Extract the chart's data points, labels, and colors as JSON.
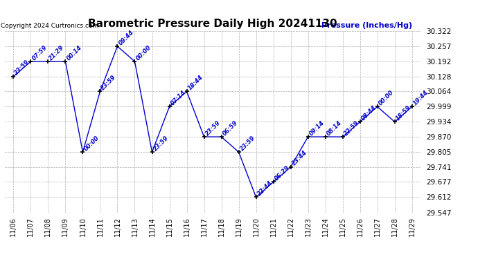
{
  "title": "Barometric Pressure Daily High 20241130",
  "copyright": "Copyright 2024 Curtronics.com",
  "ylabel": "Pressure (Inches/Hg)",
  "background_color": "#ffffff",
  "line_color": "#0000cc",
  "grid_color": "#b0b0b0",
  "dates": [
    "11/06",
    "11/07",
    "11/08",
    "11/09",
    "11/10",
    "11/11",
    "11/12",
    "11/13",
    "11/14",
    "11/15",
    "11/16",
    "11/17",
    "11/18",
    "11/19",
    "11/20",
    "11/21",
    "11/22",
    "11/23",
    "11/24",
    "11/25",
    "11/26",
    "11/27",
    "11/28",
    "11/29"
  ],
  "values": [
    30.128,
    30.192,
    30.192,
    30.192,
    29.805,
    30.064,
    30.257,
    30.192,
    29.805,
    29.999,
    30.064,
    29.87,
    29.87,
    29.805,
    29.612,
    29.677,
    29.741,
    29.87,
    29.87,
    29.87,
    29.934,
    29.999,
    29.934,
    29.999
  ],
  "times": [
    "23:59",
    "07:59",
    "21:29",
    "00:14",
    "00:00",
    "23:59",
    "09:44",
    "00:00",
    "23:59",
    "07:14",
    "18:44",
    "23:59",
    "06:59",
    "23:59",
    "22:44",
    "06:29",
    "23:44",
    "09:14",
    "08:14",
    "22:59",
    "08:44",
    "00:00",
    "18:59",
    "19:44"
  ],
  "ylim_min": 29.547,
  "ylim_max": 30.322,
  "yticks": [
    29.547,
    29.612,
    29.677,
    29.741,
    29.805,
    29.87,
    29.934,
    29.999,
    30.064,
    30.128,
    30.192,
    30.257,
    30.322
  ]
}
